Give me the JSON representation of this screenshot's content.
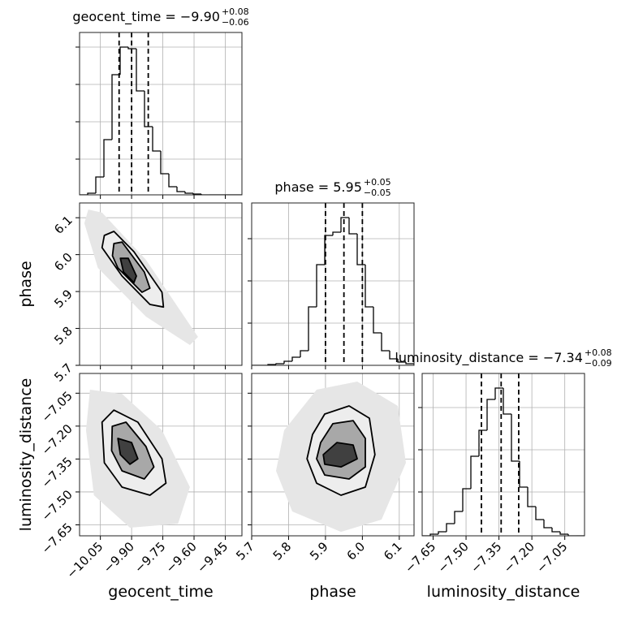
{
  "chart_data": [
    {
      "type": "histogram",
      "title": "geocent_time = −9.90",
      "title_upper": "+0.08",
      "title_lower": "−0.06",
      "bins": [
        -10.15,
        -10.111,
        -10.072,
        -10.033,
        -9.994,
        -9.955,
        -9.916,
        -9.877,
        -9.838,
        -9.799,
        -9.76,
        -9.721,
        -9.682,
        -9.643,
        -9.604,
        -9.565,
        -9.526,
        -9.487,
        -9.448,
        -9.409,
        -9.37
      ],
      "values": [
        0,
        0.01,
        0.11,
        0.34,
        0.74,
        0.91,
        0.9,
        0.64,
        0.42,
        0.27,
        0.13,
        0.05,
        0.02,
        0.01,
        0.005,
        0,
        0,
        0,
        0,
        0
      ],
      "quantiles": [
        -9.96,
        -9.9,
        -9.82
      ],
      "xlim": [
        -10.15,
        -9.37
      ],
      "xticks": [
        -10.05,
        -9.9,
        -9.75,
        -9.6,
        -9.45
      ],
      "ylim": [
        0,
        1
      ],
      "yticks": [
        0.22,
        0.45,
        0.68,
        0.91
      ],
      "grid": true,
      "color": "#000000"
    },
    {
      "type": "contour",
      "ylabel": "phase",
      "xlim": [
        -10.15,
        -9.37
      ],
      "xticks": [
        -10.05,
        -9.9,
        -9.75,
        -9.6,
        -9.45
      ],
      "ylim": [
        5.7,
        6.14
      ],
      "yticks": [
        5.7,
        5.8,
        5.9,
        {
          "value": 6,
          "label": "6.0"
        },
        6.1
      ],
      "grid": true,
      "cloud": {
        "x": [
          -10.108,
          -10.042,
          -9.831,
          -9.581,
          -9.62,
          -9.831,
          -10.062,
          -10.127
        ],
        "y": [
          6.122,
          6.114,
          5.986,
          5.777,
          5.755,
          5.832,
          5.964,
          6.085
        ]
      },
      "cloud_color": "#e6e6e6",
      "contours": [
        {
          "color": "#ededed",
          "x": [
            -10.031,
            -9.985,
            -9.889,
            -9.754,
            -9.747,
            -9.812,
            -9.946,
            -10.042
          ],
          "y": [
            6.052,
            6.063,
            6.008,
            5.898,
            5.858,
            5.865,
            5.942,
            6.019
          ]
        },
        {
          "color": "#a8a8a8",
          "x": [
            -9.985,
            -9.946,
            -9.839,
            -9.812,
            -9.85,
            -9.966,
            -9.992
          ],
          "y": [
            6.03,
            6.034,
            5.953,
            5.909,
            5.898,
            5.964,
            5.997
          ]
        },
        {
          "color": "#404040",
          "x": [
            -9.954,
            -9.916,
            -9.877,
            -9.889,
            -9.939
          ],
          "y": [
            5.99,
            5.99,
            5.942,
            5.924,
            5.953
          ]
        }
      ]
    },
    {
      "type": "histogram",
      "title": "phase = 5.95",
      "title_upper": "+0.05",
      "title_lower": "−0.05",
      "bins": [
        5.7,
        5.722,
        5.744,
        5.766,
        5.788,
        5.81,
        5.832,
        5.854,
        5.876,
        5.898,
        5.92,
        5.942,
        5.964,
        5.986,
        6.008,
        6.03,
        6.052,
        6.074,
        6.096,
        6.118,
        6.14
      ],
      "values": [
        0,
        0,
        0.005,
        0.01,
        0.025,
        0.05,
        0.09,
        0.36,
        0.62,
        0.8,
        0.82,
        0.91,
        0.81,
        0.62,
        0.36,
        0.2,
        0.09,
        0.04,
        0.02,
        0.01
      ],
      "quantiles": [
        5.9,
        5.95,
        6
      ],
      "xlim": [
        5.7,
        6.14
      ],
      "xticks": [
        5.7,
        5.8,
        5.9,
        6,
        6.1
      ],
      "ylim": [
        0,
        1
      ],
      "yticks": [
        0.26,
        0.52,
        0.78
      ],
      "grid": true,
      "color": "#000000"
    },
    {
      "type": "contour",
      "xlabel": "geocent_time",
      "ylabel": "luminosity_distance",
      "xlim": [
        -10.15,
        -9.37
      ],
      "xticks": [
        {
          "value": -10.05,
          "label": "−10.05"
        },
        {
          "value": -9.9,
          "label": "−9.90"
        },
        {
          "value": -9.75,
          "label": "−9.75"
        },
        {
          "value": -9.6,
          "label": "−9.60"
        },
        {
          "value": -9.45,
          "label": "−9.45"
        }
      ],
      "ylim": [
        -7.7,
        -6.96
      ],
      "yticks": [
        {
          "value": -7.65,
          "label": "−7.65"
        },
        {
          "value": -7.5,
          "label": "−7.50"
        },
        {
          "value": -7.35,
          "label": "−7.35"
        },
        {
          "value": -7.2,
          "label": "−7.20"
        },
        {
          "value": -7.05,
          "label": "−7.05"
        }
      ],
      "grid": true,
      "cloud": {
        "x": [
          -10.1,
          -9.946,
          -9.754,
          -9.62,
          -9.677,
          -9.908,
          -10.081,
          -10.119
        ],
        "y": [
          -7.034,
          -7.053,
          -7.219,
          -7.478,
          -7.645,
          -7.663,
          -7.515,
          -7.219
        ]
      },
      "cloud_color": "#e6e6e6",
      "contours": [
        {
          "color": "#ededed",
          "x": [
            -10.042,
            -9.985,
            -9.87,
            -9.754,
            -9.735,
            -9.812,
            -9.946,
            -10.031
          ],
          "y": [
            -7.182,
            -7.127,
            -7.182,
            -7.349,
            -7.46,
            -7.515,
            -7.478,
            -7.367
          ]
        },
        {
          "color": "#a8a8a8",
          "x": [
            -9.993,
            -9.927,
            -9.831,
            -9.793,
            -9.839,
            -9.946,
            -9.996
          ],
          "y": [
            -7.201,
            -7.182,
            -7.293,
            -7.386,
            -7.441,
            -7.404,
            -7.312
          ]
        },
        {
          "color": "#404040",
          "x": [
            -9.966,
            -9.9,
            -9.87,
            -9.908,
            -9.954
          ],
          "y": [
            -7.256,
            -7.275,
            -7.349,
            -7.374,
            -7.33
          ]
        }
      ]
    },
    {
      "type": "contour",
      "xlabel": "phase",
      "xlim": [
        5.7,
        6.14
      ],
      "xticks": [
        5.7,
        5.8,
        5.9,
        {
          "value": 6,
          "label": "6.0"
        },
        6.1
      ],
      "ylim": [
        -7.7,
        -6.96
      ],
      "yticks": [
        -7.65,
        -7.5,
        -7.35,
        -7.2,
        -7.05
      ],
      "grid": true,
      "cloud": {
        "x": [
          5.788,
          5.876,
          5.986,
          6.096,
          6.118,
          6.052,
          5.942,
          5.81,
          5.766
        ],
        "y": [
          -7.219,
          -7.034,
          -6.997,
          -7.108,
          -7.367,
          -7.626,
          -7.682,
          -7.589,
          -7.404
        ]
      },
      "cloud_color": "#e6e6e6",
      "contours": [
        {
          "color": "#ededed",
          "x": [
            5.865,
            5.898,
            5.964,
            6.019,
            6.034,
            6.008,
            5.942,
            5.876,
            5.85
          ],
          "y": [
            -7.238,
            -7.145,
            -7.108,
            -7.164,
            -7.33,
            -7.478,
            -7.515,
            -7.46,
            -7.349
          ]
        },
        {
          "color": "#a8a8a8",
          "x": [
            5.887,
            5.92,
            5.975,
            6.008,
            6.008,
            5.964,
            5.898,
            5.876
          ],
          "y": [
            -7.275,
            -7.189,
            -7.175,
            -7.256,
            -7.386,
            -7.441,
            -7.423,
            -7.349
          ]
        },
        {
          "color": "#404040",
          "x": [
            5.894,
            5.931,
            5.975,
            5.986,
            5.942,
            5.898
          ],
          "y": [
            -7.33,
            -7.275,
            -7.286,
            -7.349,
            -7.386,
            -7.374
          ]
        }
      ]
    },
    {
      "type": "histogram",
      "title": "luminosity_distance = −7.34",
      "title_upper": "+0.08",
      "title_lower": "−0.09",
      "xlabel": "luminosity_distance",
      "bins": [
        -7.7,
        -7.663,
        -7.626,
        -7.589,
        -7.552,
        -7.515,
        -7.478,
        -7.441,
        -7.404,
        -7.367,
        -7.33,
        -7.293,
        -7.256,
        -7.219,
        -7.182,
        -7.145,
        -7.108,
        -7.071,
        -7.034,
        -6.997,
        -6.96
      ],
      "values": [
        0,
        0.01,
        0.025,
        0.075,
        0.15,
        0.29,
        0.49,
        0.65,
        0.84,
        0.91,
        0.75,
        0.46,
        0.3,
        0.18,
        0.1,
        0.05,
        0.025,
        0.01,
        0,
        0
      ],
      "quantiles": [
        -7.43,
        -7.34,
        -7.26
      ],
      "xlim": [
        -7.7,
        -6.96
      ],
      "xticks": [
        {
          "value": -7.65,
          "label": "−7.65"
        },
        {
          "value": -7.5,
          "label": "−7.50"
        },
        {
          "value": -7.35,
          "label": "−7.35"
        },
        {
          "value": -7.2,
          "label": "−7.20"
        },
        {
          "value": -7.05,
          "label": "−7.05"
        }
      ],
      "ylim": [
        0,
        1
      ],
      "yticks": [
        0.27,
        0.53,
        0.79
      ],
      "grid": true,
      "color": "#000000"
    }
  ]
}
